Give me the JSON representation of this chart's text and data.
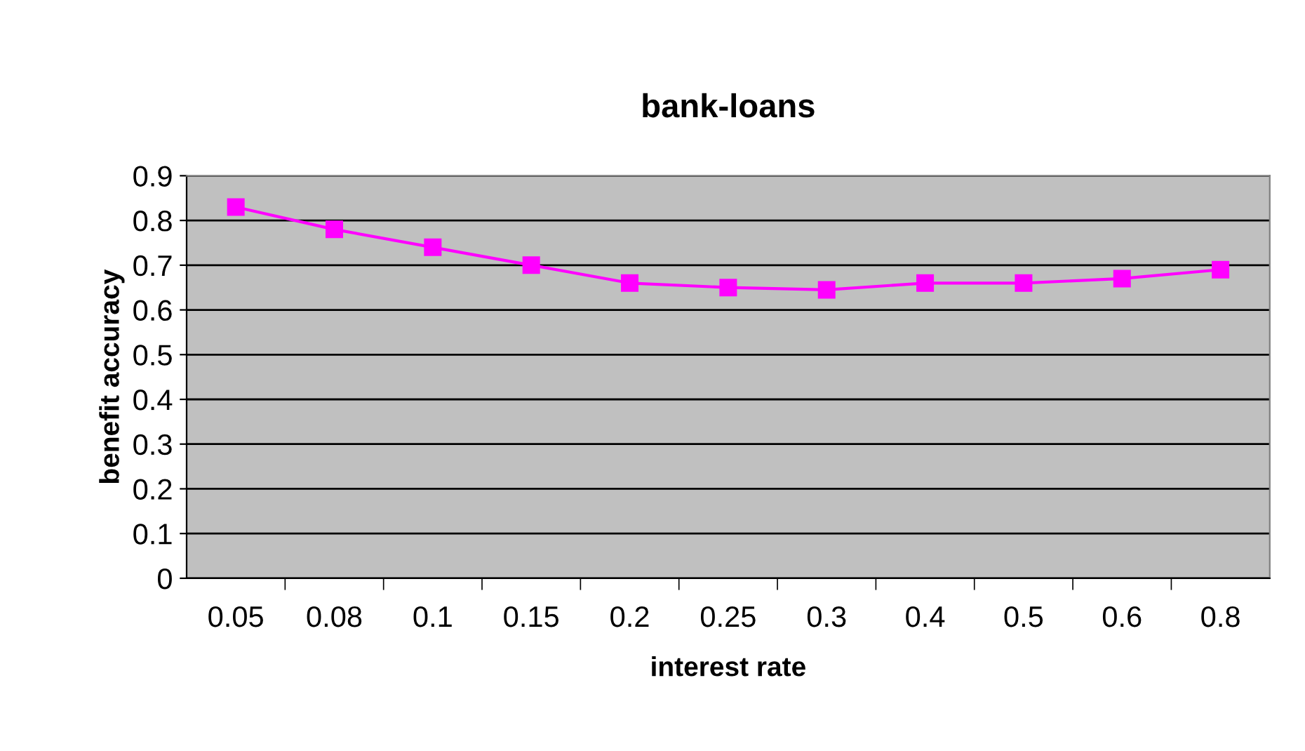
{
  "chart_data": {
    "type": "line",
    "title": "bank-loans",
    "xlabel": "interest rate",
    "ylabel": "benefit accuracy",
    "categories": [
      "0.05",
      "0.08",
      "0.1",
      "0.15",
      "0.2",
      "0.25",
      "0.3",
      "0.4",
      "0.5",
      "0.6",
      "0.8"
    ],
    "series": [
      {
        "color": "#ff00ff",
        "values": [
          0.83,
          0.78,
          0.74,
          0.7,
          0.66,
          0.65,
          0.645,
          0.66,
          0.66,
          0.67,
          0.69
        ]
      }
    ],
    "ylim": [
      0,
      0.9
    ],
    "yticks": [
      0,
      0.1,
      0.2,
      0.3,
      0.4,
      0.5,
      0.6,
      0.7,
      0.8,
      0.9
    ],
    "grid": "y",
    "marker": "square",
    "line_style": "solid"
  }
}
